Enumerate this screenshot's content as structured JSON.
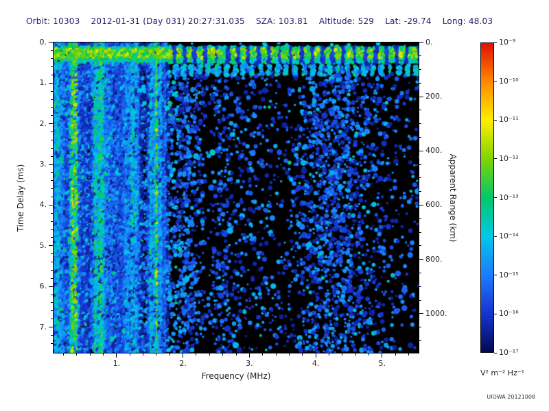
{
  "header": {
    "items": [
      {
        "label": "Orbit:",
        "value": "10303"
      },
      {
        "label": "",
        "value": "2012-01-31 (Day 031) 20:27:31.035"
      },
      {
        "label": "SZA:",
        "value": "103.81"
      },
      {
        "label": "Altitude:",
        "value": "529"
      },
      {
        "label": "Lat:",
        "value": "-29.74"
      },
      {
        "label": "Long:",
        "value": "48.03"
      }
    ]
  },
  "footer": {
    "credit": "UIOWA 20121008"
  },
  "colors": {
    "background": "#ffffff",
    "plot_background": "#000000",
    "header_text": "#21216b",
    "axis_text": "#222222"
  },
  "chart_data": {
    "type": "heatmap",
    "description": "Radar sounder ionogram spectrogram on black background: bright green/cyan horizontal band at ~0.1-0.47 ms time delay across all frequencies, a row of periodic echo blobs just below it, dense green/cyan/blue vertical noise striping below ~1.78 MHz extending the full time-delay range, sparse dark-blue speckle noise at higher frequencies with a denser blue patch near 4.0-4.7 MHz",
    "xlabel": "Frequency (MHz)",
    "xlim": [
      0.05,
      5.55
    ],
    "x_ticks": [
      1,
      2,
      3,
      4,
      5
    ],
    "x_tick_labels": [
      "1.",
      "2.",
      "3.",
      "4.",
      "5."
    ],
    "ylabel_left": "Time Delay (ms)",
    "ylim": [
      0,
      7.63
    ],
    "y_ticks": [
      0,
      1,
      2,
      3,
      4,
      5,
      6,
      7
    ],
    "y_tick_labels": [
      "0.",
      "1.",
      "2.",
      "3.",
      "4.",
      "5.",
      "6.",
      "7."
    ],
    "ylabel_right": "Apparent Range (km)",
    "right_ticks_km": [
      0,
      200,
      400,
      600,
      800,
      1000
    ],
    "right_tick_labels": [
      "0.",
      "200.",
      "400.",
      "600.",
      "800.",
      "1000."
    ],
    "km_per_ms": 150,
    "colorbar": {
      "units": "V² m⁻² Hz⁻¹",
      "tick_labels": [
        "10⁻⁹",
        "10⁻¹⁰",
        "10⁻¹¹",
        "10⁻¹²",
        "10⁻¹³",
        "10⁻¹⁴",
        "10⁻¹⁵",
        "10⁻¹⁶",
        "10⁻¹⁷"
      ],
      "min": "10⁻¹⁷",
      "max": "10⁻⁹",
      "colors_top_to_bottom": [
        "#e01000",
        "#ff8800",
        "#ffee00",
        "#7fd400",
        "#00c96a",
        "#00c8e8",
        "#1c7dff",
        "#1633cf",
        "#020a52"
      ]
    },
    "render": {
      "seed": 20121008,
      "band_time_ms": [
        0.1,
        0.47
      ],
      "echo_row_time_ms": [
        0.52,
        0.78
      ],
      "striped_region_max_mhz": 1.78,
      "dense_patch_center_mhz": 4.25,
      "dark_gap_mhz": 1.41,
      "bright_line_mhz": 1.6
    }
  }
}
